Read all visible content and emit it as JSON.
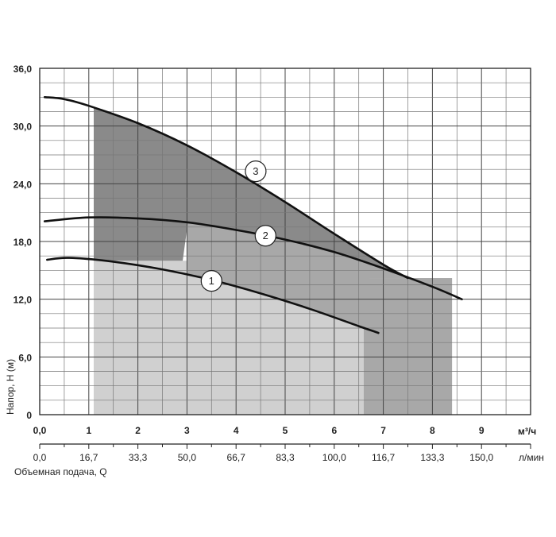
{
  "chart_data": {
    "type": "line",
    "ylabel": "Напор, H (м)",
    "xlabel": "Объемная подача, Q",
    "x_unit_primary": "м³/ч",
    "x_unit_secondary": "л/мин",
    "xlim": [
      0,
      10
    ],
    "ylim": [
      0,
      36
    ],
    "y_ticks": [
      "0",
      "6,0",
      "12,0",
      "18,0",
      "24,0",
      "30,0",
      "36,0"
    ],
    "x_ticks_primary": [
      "0,0",
      "1",
      "2",
      "3",
      "4",
      "5",
      "6",
      "7",
      "8",
      "9"
    ],
    "x_ticks_secondary": [
      "0,0",
      "16,7",
      "33,3",
      "50,0",
      "66,7",
      "83,3",
      "100,0",
      "116,7",
      "133,3",
      "150,0"
    ],
    "grid": true,
    "shaded_regions": [
      {
        "x": [
          1.1,
          6.6
        ],
        "y": [
          0,
          16
        ],
        "color": "#d0d0d0"
      },
      {
        "x": [
          6.6,
          8.4
        ],
        "y": [
          0,
          14.2
        ],
        "color": "#a8a8a8"
      },
      {
        "color": "#a8a8a8"
      },
      {
        "color": "#8a8a8a"
      }
    ],
    "series": [
      {
        "name": "1",
        "x": [
          0.15,
          0.6,
          1.5,
          2.5,
          3.5,
          4.5,
          5.5,
          6.5,
          6.9
        ],
        "y": [
          16.1,
          16.3,
          15.9,
          15.1,
          14.0,
          12.6,
          11.0,
          9.2,
          8.5
        ]
      },
      {
        "name": "2",
        "x": [
          0.1,
          1.0,
          2.0,
          3.0,
          4.0,
          5.0,
          6.0,
          7.0,
          8.0,
          8.6
        ],
        "y": [
          20.1,
          20.5,
          20.4,
          20.0,
          19.2,
          18.2,
          16.9,
          15.2,
          13.3,
          12.0
        ]
      },
      {
        "name": "3",
        "x": [
          0.1,
          0.5,
          1.0,
          2.0,
          3.0,
          4.0,
          5.0,
          6.0,
          7.0,
          7.5
        ],
        "y": [
          33.0,
          32.8,
          32.1,
          30.3,
          28.0,
          25.2,
          22.1,
          18.8,
          15.6,
          14.2
        ]
      }
    ]
  }
}
